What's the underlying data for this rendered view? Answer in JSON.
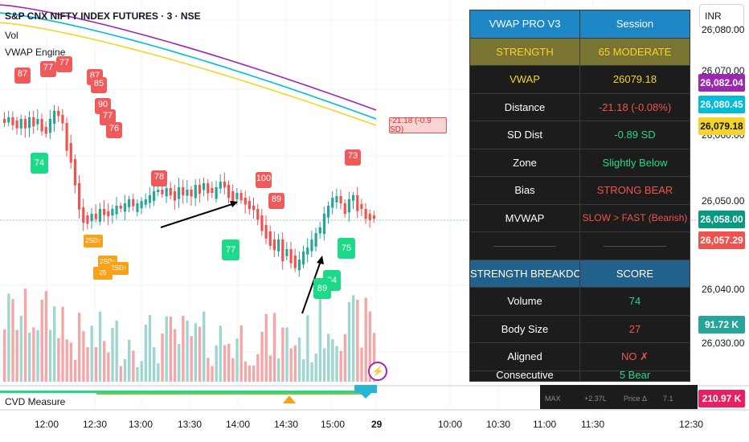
{
  "header": {
    "symbol_line": "S&P CNX NIFTY INDEX FUTURES · 3 · NSE",
    "indicator_vol": "Vol",
    "indicator_vwap": "VWAP Engine"
  },
  "cvd_label": "CVD Measure",
  "currency_button": "INR",
  "price_axis": {
    "ticks": [
      "26,080.00",
      "26,070.00",
      "26,060.00",
      "26,050.00",
      "26,040.00",
      "26,030.00"
    ],
    "badges": [
      {
        "label": "26,082.04",
        "color": "#9c27b0"
      },
      {
        "label": "26,080.45",
        "color": "#00bcd4"
      },
      {
        "label": "26,079.18",
        "color": "#f5d42a"
      },
      {
        "label": "26,058.00",
        "color": "#089981"
      },
      {
        "label": "26,057.29",
        "color": "#ef5350"
      },
      {
        "label": "91.72 K",
        "color": "#26a69a"
      },
      {
        "label": "210.97 K",
        "color": "#e91e63"
      }
    ]
  },
  "vwap_distance_label": "-21.18 (-0.9 SD)",
  "time_axis": [
    "12:00",
    "12:30",
    "13:00",
    "13:30",
    "14:00",
    "14:30",
    "15:00",
    "29",
    "10:00",
    "10:30",
    "11:00",
    "11:30",
    "12:30"
  ],
  "table": {
    "header": {
      "left": "VWAP PRO V3",
      "right": "Session"
    },
    "strength": {
      "label": "STRENGTH",
      "value": "65 MODERATE"
    },
    "rows": [
      {
        "label": "VWAP",
        "value": "26079.18"
      },
      {
        "label": "Distance",
        "value": "-21.18 (-0.08%)"
      },
      {
        "label": "SD Dist",
        "value": "-0.89 SD"
      },
      {
        "label": "Zone",
        "value": "Slightly Below"
      },
      {
        "label": "Bias",
        "value": "STRONG BEAR"
      },
      {
        "label": "MVWAP",
        "value": "SLOW > FAST (Bearish)"
      },
      {
        "label": "——————",
        "value": "——————"
      }
    ],
    "breakdown_header": {
      "left": "STRENGTH BREAKDOWN",
      "right": "SCORE"
    },
    "breakdown": [
      {
        "label": "Volume",
        "value": "74"
      },
      {
        "label": "Body Size",
        "value": "27"
      },
      {
        "label": "Aligned",
        "value": "NO ✗"
      },
      {
        "label": "Consecutive",
        "value": "5 Bear"
      }
    ]
  },
  "mini_table": [
    "MAX",
    "+2.37L",
    "Price Δ",
    "7.1"
  ],
  "signals": {
    "sell": [
      "87",
      "77",
      "77",
      "87",
      "85",
      "90",
      "77",
      "76",
      "78",
      "100",
      "89",
      "73"
    ],
    "buy": [
      "74",
      "77",
      "84",
      "75",
      "89"
    ],
    "sd": [
      "2SD↑",
      "2SD↑",
      "2SD↑",
      "25"
    ]
  },
  "colors": {
    "up": "#26a69a",
    "down": "#ef5350",
    "vwap": "#f5d42a",
    "mvwap_fast": "#00bcd4",
    "mvwap_slow": "#9c27b0",
    "sell_marker": "#f05a5a",
    "buy_marker": "#1ed98a",
    "sd_marker": "#f7a21b"
  }
}
